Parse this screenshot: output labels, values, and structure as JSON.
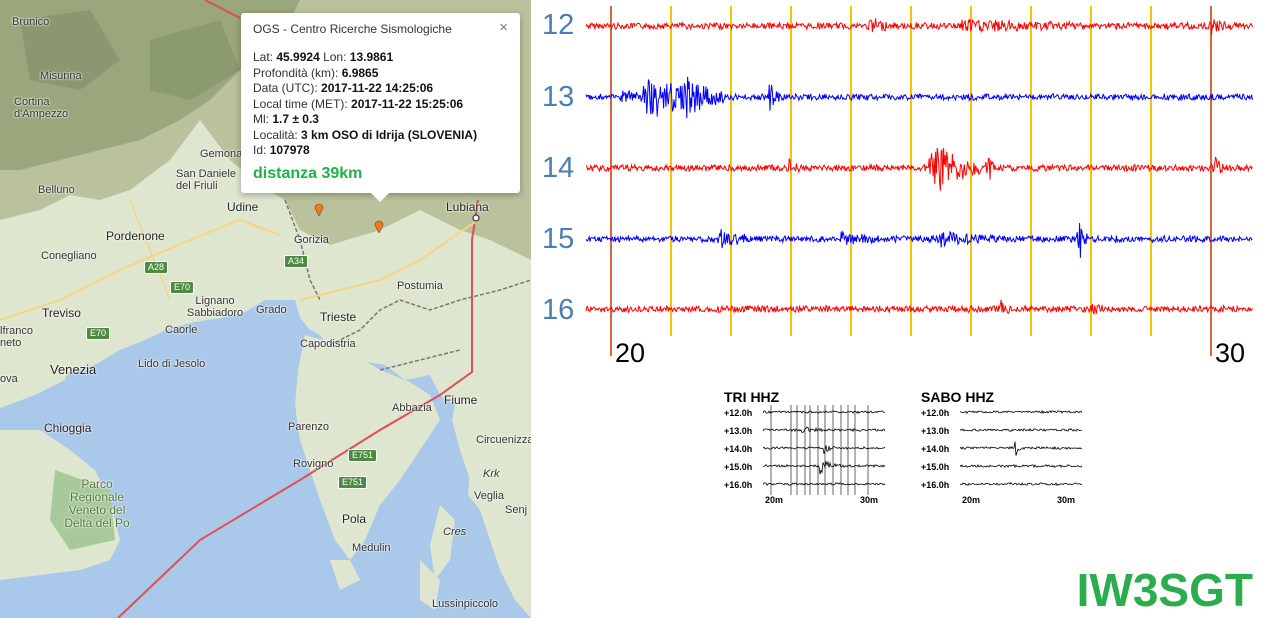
{
  "map": {
    "places": [
      {
        "id": "brunico",
        "label": "Brunico"
      },
      {
        "id": "misurina",
        "label": "Misurina"
      },
      {
        "id": "cortina",
        "label": "Cortina\nd'Ampezzo"
      },
      {
        "id": "gemona",
        "label": "Gemona"
      },
      {
        "id": "sandaniele",
        "label": "San Daniele\ndel Friuli"
      },
      {
        "id": "belluno",
        "label": "Belluno"
      },
      {
        "id": "udine",
        "label": "Udine"
      },
      {
        "id": "pordenone",
        "label": "Pordenone"
      },
      {
        "id": "conegliano",
        "label": "Conegliano"
      },
      {
        "id": "gorizia",
        "label": "Gorizia"
      },
      {
        "id": "lubiana",
        "label": "Lubiana"
      },
      {
        "id": "postumia",
        "label": "Postumia"
      },
      {
        "id": "treviso",
        "label": "Treviso"
      },
      {
        "id": "lignano",
        "label": "Lignano\nSabbiadoro"
      },
      {
        "id": "grado",
        "label": "Grado"
      },
      {
        "id": "caorle",
        "label": "Caorle"
      },
      {
        "id": "trieste",
        "label": "Trieste"
      },
      {
        "id": "franco",
        "label": "lfranco\nneto"
      },
      {
        "id": "capodistria",
        "label": "Capodistria"
      },
      {
        "id": "venezia",
        "label": "Venezia"
      },
      {
        "id": "lido",
        "label": "Lido di Jesolo"
      },
      {
        "id": "ova",
        "label": "ova"
      },
      {
        "id": "abbazia",
        "label": "Abbazia"
      },
      {
        "id": "fiume",
        "label": "Fiume"
      },
      {
        "id": "chioggia",
        "label": "Chioggia"
      },
      {
        "id": "parenzo",
        "label": "Parenzo"
      },
      {
        "id": "circuenizza",
        "label": "Circuenizza"
      },
      {
        "id": "rovigno",
        "label": "Rovigno"
      },
      {
        "id": "krk",
        "label": "Krk"
      },
      {
        "id": "veglia",
        "label": "Veglia"
      },
      {
        "id": "senj",
        "label": "Senj"
      },
      {
        "id": "pola",
        "label": "Pola"
      },
      {
        "id": "cres",
        "label": "Cres"
      },
      {
        "id": "medulin",
        "label": "Medulin"
      },
      {
        "id": "lussin",
        "label": "Lussinpiccolo"
      },
      {
        "id": "park",
        "label": "Parco\nRegionale\nVeneto del\nDelta del Po"
      }
    ],
    "roads": [
      "A28",
      "E70",
      "E70",
      "A34",
      "E751",
      "E751"
    ]
  },
  "popup": {
    "title": "OGS - Centro Ricerche Sismologiche",
    "close": "×",
    "rows": [
      {
        "label": "Lat: ",
        "value": "45.9924",
        "label2": " Lon: ",
        "value2": "13.9861"
      },
      {
        "label": "Profondità (km): ",
        "value": "6.9865"
      },
      {
        "label": "Data (UTC): ",
        "value": "2017-11-22 14:25:06"
      },
      {
        "label": "Local time (MET): ",
        "value": "2017-11-22 15:25:06"
      },
      {
        "label": "Ml: ",
        "value": "1.7 ± 0.3"
      },
      {
        "label": "Località: ",
        "value": "3 km OSO di Idrija (SLOVENIA)"
      },
      {
        "label": "Id: ",
        "value": "107978"
      }
    ],
    "distance": "distanza 39km"
  },
  "seismogram": {
    "rows": [
      {
        "label": "12",
        "color": "#ff0000"
      },
      {
        "label": "13",
        "color": "#0000ff"
      },
      {
        "label": "14",
        "color": "#ff0000"
      },
      {
        "label": "15",
        "color": "#0000ff"
      },
      {
        "label": "16",
        "color": "#ff0000"
      }
    ],
    "tick_labels": [
      "20",
      "30"
    ],
    "marker_color": "#f5c400",
    "edge_color": "#cc3300"
  },
  "mini": [
    {
      "title": "TRI HHZ",
      "rows": [
        "+12.0h",
        "+13.0h",
        "+14.0h",
        "+15.0h",
        "+16.0h"
      ],
      "ticks": [
        "20m",
        "30m"
      ]
    },
    {
      "title": "SABO HHZ",
      "rows": [
        "+12.0h",
        "+13.0h",
        "+14.0h",
        "+15.0h",
        "+16.0h"
      ],
      "ticks": [
        "20m",
        "30m"
      ]
    }
  ],
  "callsign": "IW3SGT"
}
